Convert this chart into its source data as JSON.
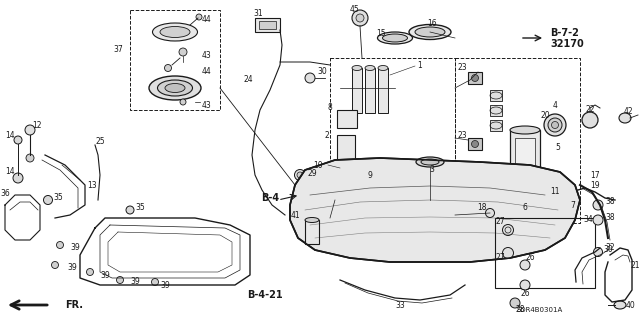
{
  "bg_color": "#ffffff",
  "line_color": "#1a1a1a",
  "text_color": "#1a1a1a",
  "label_fs": 5.5,
  "bold_fs": 7.0,
  "ref_text1": "B-7-2",
  "ref_text2": "32170",
  "b4": "B-4",
  "b421": "B-4-21",
  "fr": "FR.",
  "code": "SDR4B0301A",
  "fig_w": 6.4,
  "fig_h": 3.19,
  "dpi": 100
}
